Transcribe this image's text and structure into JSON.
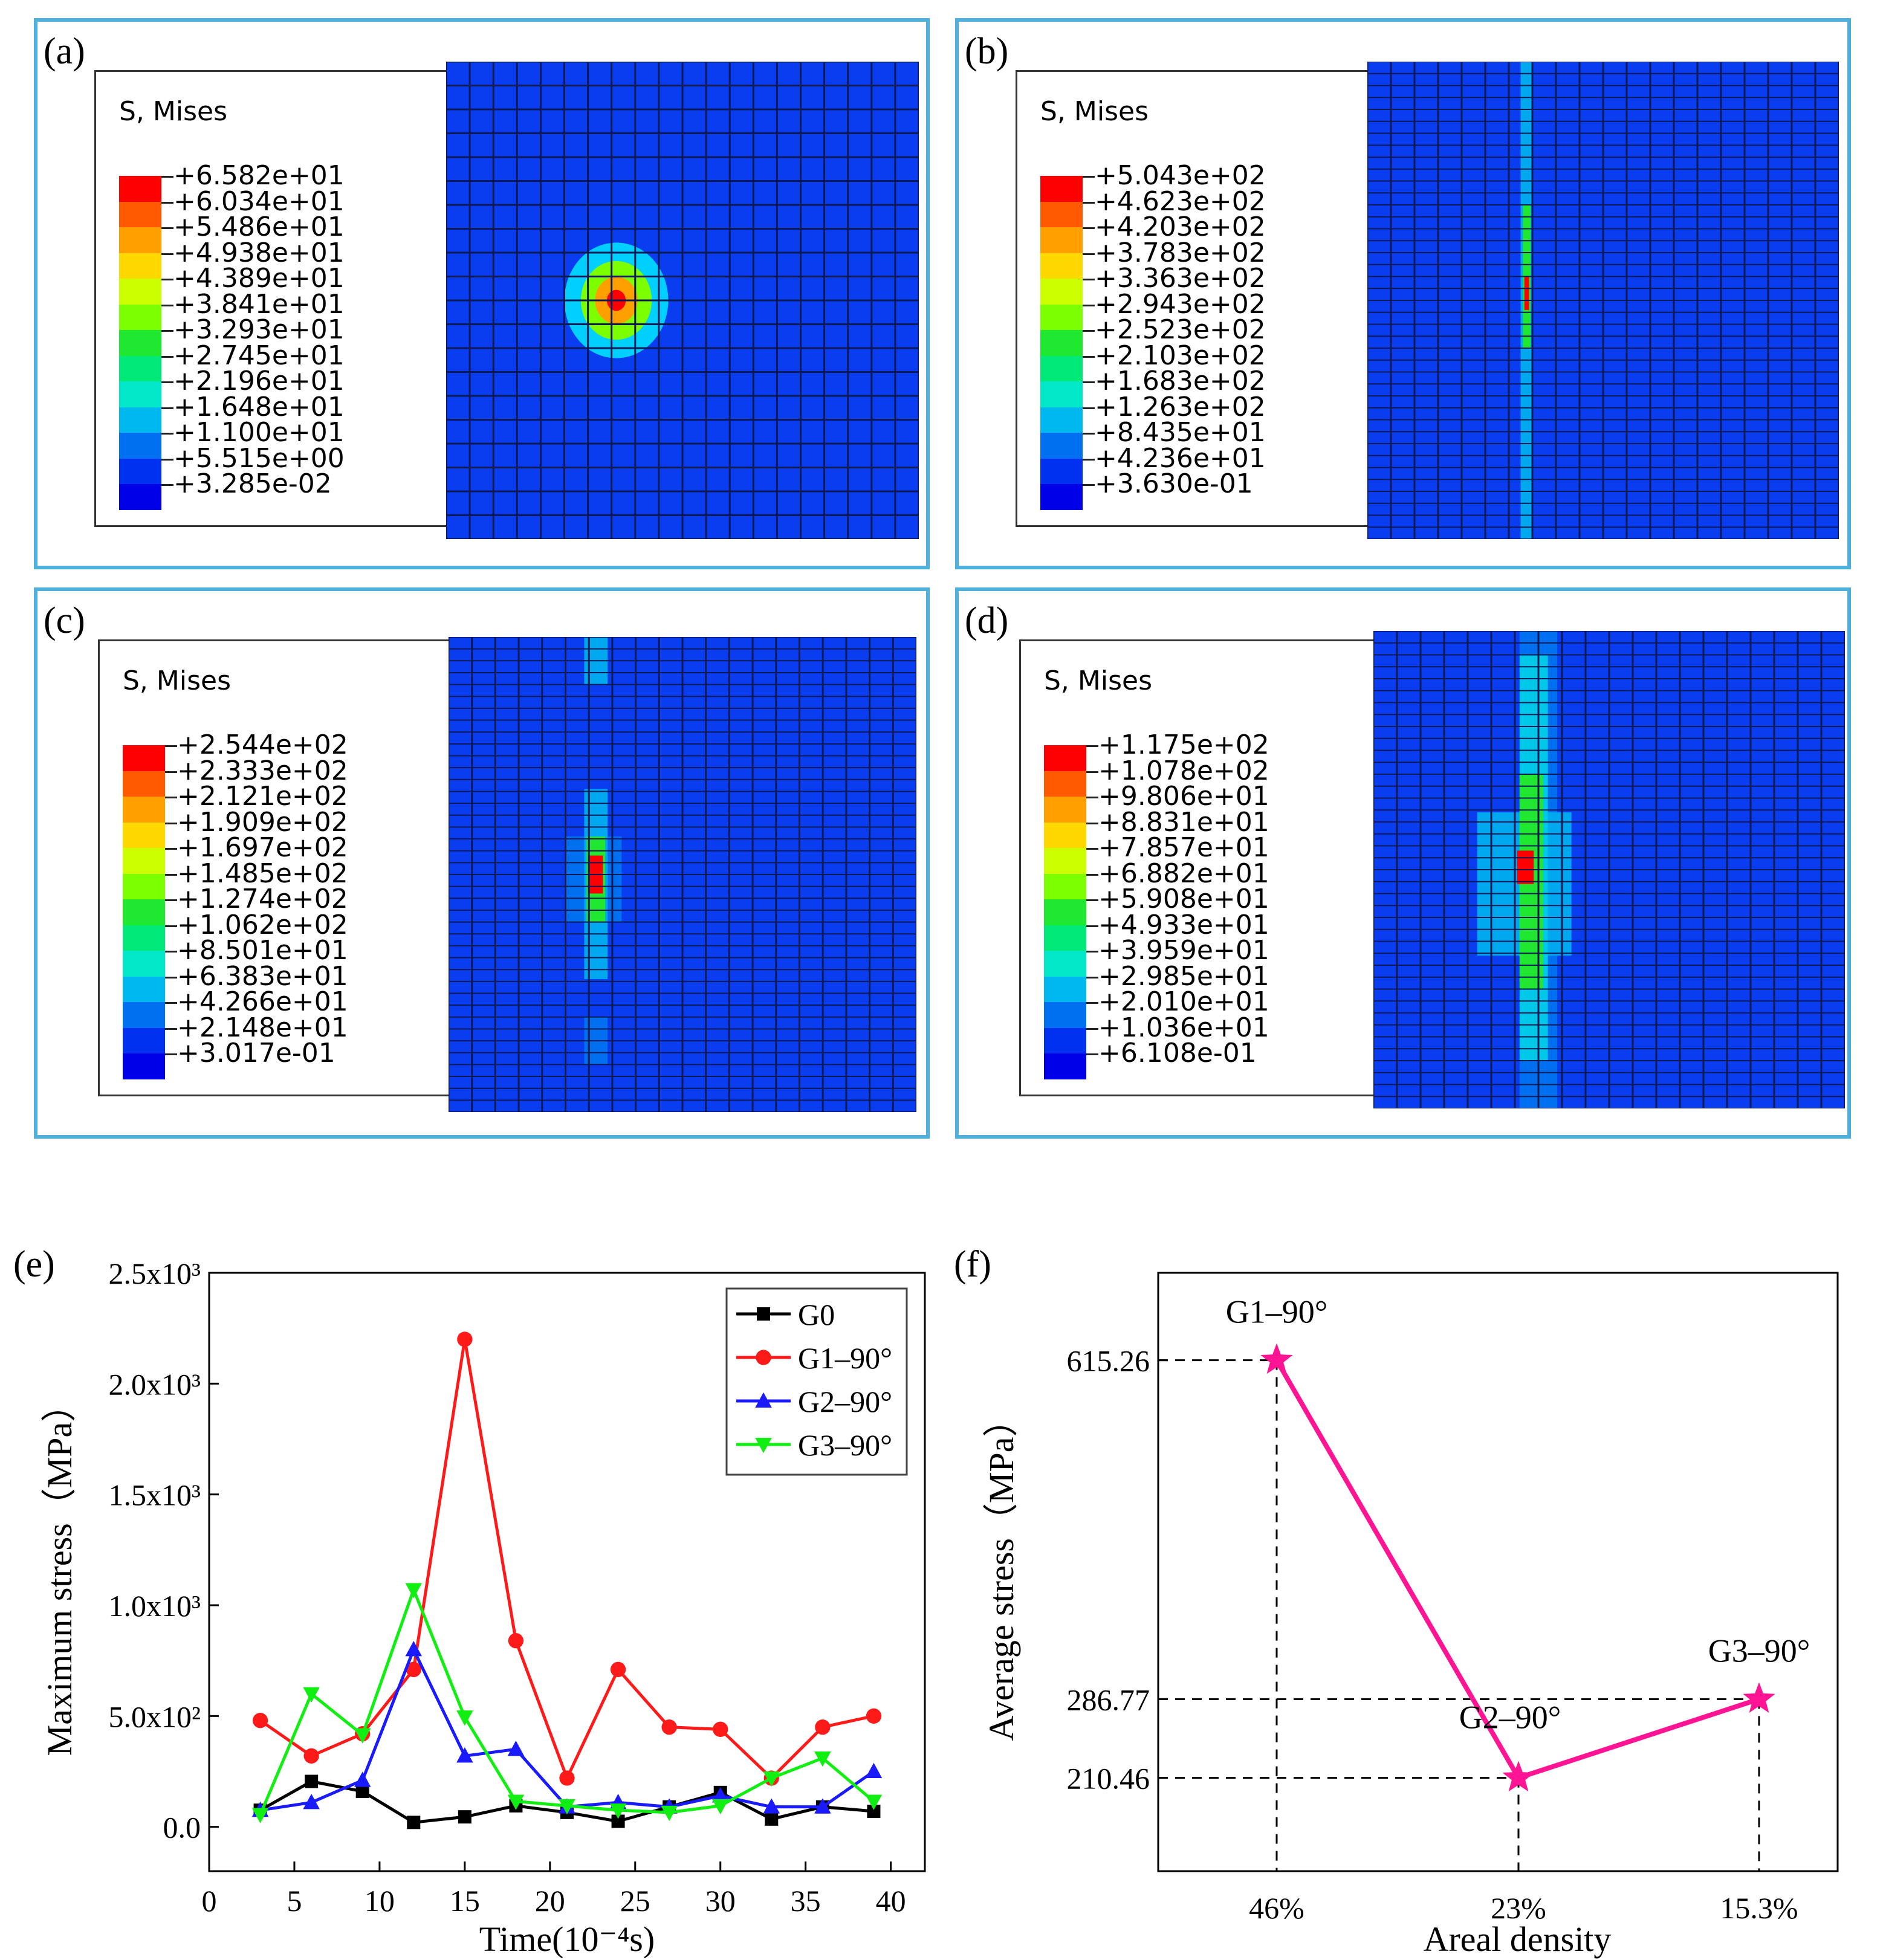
{
  "panels": [
    {
      "label": "(a)",
      "legend_title": "S, Mises",
      "values": [
        "+6.582e+01",
        "+6.034e+01",
        "+5.486e+01",
        "+4.938e+01",
        "+4.389e+01",
        "+3.841e+01",
        "+3.293e+01",
        "+2.745e+01",
        "+2.196e+01",
        "+1.648e+01",
        "+1.100e+01",
        "+5.515e+00",
        "+3.285e-02"
      ]
    },
    {
      "label": "(b)",
      "legend_title": "S, Mises",
      "values": [
        "+5.043e+02",
        "+4.623e+02",
        "+4.203e+02",
        "+3.783e+02",
        "+3.363e+02",
        "+2.943e+02",
        "+2.523e+02",
        "+2.103e+02",
        "+1.683e+02",
        "+1.263e+02",
        "+8.435e+01",
        "+4.236e+01",
        "+3.630e-01"
      ]
    },
    {
      "label": "(c)",
      "legend_title": "S, Mises",
      "values": [
        "+2.544e+02",
        "+2.333e+02",
        "+2.121e+02",
        "+1.909e+02",
        "+1.697e+02",
        "+1.485e+02",
        "+1.274e+02",
        "+1.062e+02",
        "+8.501e+01",
        "+6.383e+01",
        "+4.266e+01",
        "+2.148e+01",
        "+3.017e-01"
      ]
    },
    {
      "label": "(d)",
      "legend_title": "S, Mises",
      "values": [
        "+1.175e+02",
        "+1.078e+02",
        "+9.806e+01",
        "+8.831e+01",
        "+7.857e+01",
        "+6.882e+01",
        "+5.908e+01",
        "+4.933e+01",
        "+3.959e+01",
        "+2.985e+01",
        "+2.010e+01",
        "+1.036e+01",
        "+6.108e-01"
      ]
    }
  ],
  "contour_colors": [
    "#ff0000",
    "#ff5a00",
    "#ffa000",
    "#ffd800",
    "#ccff00",
    "#7cff00",
    "#20e830",
    "#00e878",
    "#00e8c8",
    "#00b8f0",
    "#0070f0",
    "#0030f0",
    "#0000e8"
  ],
  "chart_data": [
    {
      "type": "line",
      "label": "(e)",
      "xlabel": "Time(10⁻⁴s)",
      "ylabel": "Maximum stress（MPa）",
      "x_ticks": [
        "0",
        "5",
        "10",
        "15",
        "20",
        "25",
        "30",
        "35",
        "40"
      ],
      "y_ticks": [
        "0.0",
        "5.0x10²",
        "1.0x10³",
        "1.5x10³",
        "2.0x10³",
        "2.5x10³"
      ],
      "xlim": [
        0,
        42
      ],
      "ylim": [
        -200,
        2500
      ],
      "x": [
        3,
        6,
        9,
        12,
        15,
        18,
        21,
        24,
        27,
        30,
        33,
        36,
        39
      ],
      "series": [
        {
          "name": "G0",
          "color": "#000000",
          "marker": "square",
          "values": [
            75,
            205,
            160,
            20,
            45,
            95,
            65,
            25,
            90,
            155,
            35,
            90,
            70
          ]
        },
        {
          "name": "G1–90°",
          "color": "#ff1a1a",
          "marker": "circle",
          "values": [
            480,
            320,
            420,
            710,
            2200,
            840,
            220,
            710,
            450,
            440,
            220,
            450,
            500
          ]
        },
        {
          "name": "G2–90°",
          "color": "#1a1aff",
          "marker": "triangle-up",
          "values": [
            75,
            110,
            210,
            800,
            320,
            350,
            90,
            110,
            90,
            140,
            90,
            90,
            250
          ]
        },
        {
          "name": "G3–90°",
          "color": "#11ee11",
          "marker": "triangle-down",
          "values": [
            55,
            600,
            415,
            1070,
            495,
            115,
            95,
            75,
            65,
            95,
            220,
            310,
            115
          ]
        }
      ]
    },
    {
      "type": "line",
      "label": "(f)",
      "xlabel": "Areal density",
      "ylabel": "Average stress（MPa）",
      "categories": [
        "46%",
        "23%",
        "15.3%"
      ],
      "y_ticks": [
        "615.26",
        "286.77",
        "210.46"
      ],
      "color": "#ff1493",
      "points": [
        {
          "name": "G1–90°",
          "category": "46%",
          "value": 615.26
        },
        {
          "name": "G2–90°",
          "category": "23%",
          "value": 210.46
        },
        {
          "name": "G3–90°",
          "category": "15.3%",
          "value": 286.77
        }
      ]
    }
  ]
}
